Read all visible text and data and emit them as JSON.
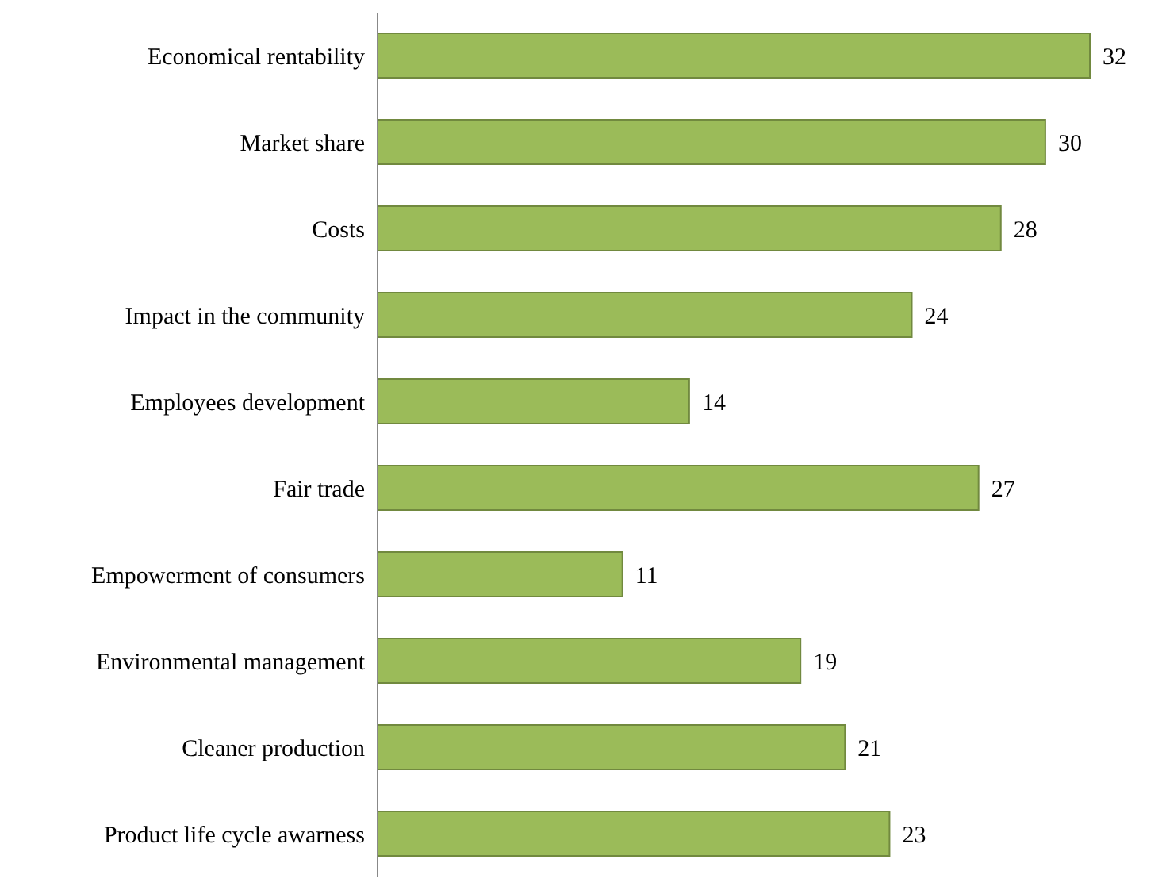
{
  "chart_data": {
    "type": "bar",
    "orientation": "horizontal",
    "categories": [
      "Economical rentability",
      "Market share",
      "Costs",
      "Impact in the community",
      "Employees development",
      "Fair trade",
      "Empowerment of consumers",
      "Environmental management",
      "Cleaner production",
      "Product life cycle awarness"
    ],
    "values": [
      32,
      30,
      28,
      24,
      14,
      27,
      11,
      19,
      21,
      23
    ],
    "color": "#9bbb59",
    "data_labels": true,
    "grid": false,
    "legend": false
  }
}
